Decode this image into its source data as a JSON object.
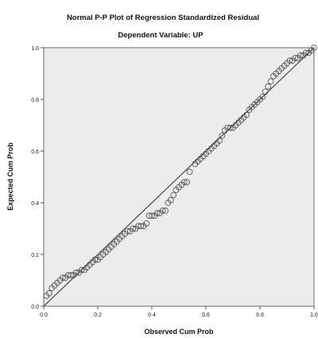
{
  "chart_data": {
    "type": "scatter",
    "title": "Normal P-P Plot of Regression Standardized Residual",
    "subtitle": "Dependent Variable: UP",
    "xlabel": "Observed Cum Prob",
    "ylabel": "Expected Cum Prob",
    "xlim": [
      0,
      1
    ],
    "ylim": [
      0,
      1
    ],
    "x_ticks": [
      "0.0",
      "0.2",
      "0.4",
      "0.6",
      "0.8",
      "1.0"
    ],
    "y_ticks": [
      "0.0",
      "0.2",
      "0.4",
      "0.6",
      "0.8",
      "1.0"
    ],
    "reference_line": [
      [
        0,
        0
      ],
      [
        1,
        1
      ]
    ],
    "grid": false,
    "legend": "none",
    "colors": {
      "plot_background": "#ececec",
      "marker": "#555555",
      "line": "#444444"
    },
    "points": [
      [
        0.01,
        0.04
      ],
      [
        0.02,
        0.05
      ],
      [
        0.03,
        0.07
      ],
      [
        0.04,
        0.08
      ],
      [
        0.05,
        0.09
      ],
      [
        0.06,
        0.1
      ],
      [
        0.07,
        0.11
      ],
      [
        0.08,
        0.11
      ],
      [
        0.09,
        0.12
      ],
      [
        0.1,
        0.12
      ],
      [
        0.11,
        0.12
      ],
      [
        0.12,
        0.13
      ],
      [
        0.13,
        0.13
      ],
      [
        0.14,
        0.14
      ],
      [
        0.15,
        0.14
      ],
      [
        0.16,
        0.15
      ],
      [
        0.17,
        0.16
      ],
      [
        0.18,
        0.17
      ],
      [
        0.19,
        0.18
      ],
      [
        0.2,
        0.18
      ],
      [
        0.21,
        0.19
      ],
      [
        0.22,
        0.2
      ],
      [
        0.23,
        0.21
      ],
      [
        0.24,
        0.22
      ],
      [
        0.25,
        0.23
      ],
      [
        0.26,
        0.24
      ],
      [
        0.27,
        0.25
      ],
      [
        0.28,
        0.26
      ],
      [
        0.29,
        0.27
      ],
      [
        0.3,
        0.28
      ],
      [
        0.31,
        0.29
      ],
      [
        0.32,
        0.29
      ],
      [
        0.33,
        0.3
      ],
      [
        0.34,
        0.3
      ],
      [
        0.35,
        0.31
      ],
      [
        0.36,
        0.31
      ],
      [
        0.37,
        0.31
      ],
      [
        0.38,
        0.32
      ],
      [
        0.39,
        0.35
      ],
      [
        0.4,
        0.35
      ],
      [
        0.41,
        0.35
      ],
      [
        0.42,
        0.36
      ],
      [
        0.43,
        0.36
      ],
      [
        0.44,
        0.37
      ],
      [
        0.45,
        0.37
      ],
      [
        0.46,
        0.4
      ],
      [
        0.47,
        0.41
      ],
      [
        0.48,
        0.43
      ],
      [
        0.49,
        0.45
      ],
      [
        0.5,
        0.46
      ],
      [
        0.51,
        0.47
      ],
      [
        0.52,
        0.48
      ],
      [
        0.53,
        0.48
      ],
      [
        0.54,
        0.52
      ],
      [
        0.56,
        0.55
      ],
      [
        0.57,
        0.56
      ],
      [
        0.58,
        0.57
      ],
      [
        0.59,
        0.58
      ],
      [
        0.6,
        0.59
      ],
      [
        0.61,
        0.6
      ],
      [
        0.62,
        0.61
      ],
      [
        0.63,
        0.62
      ],
      [
        0.64,
        0.63
      ],
      [
        0.65,
        0.64
      ],
      [
        0.66,
        0.66
      ],
      [
        0.67,
        0.68
      ],
      [
        0.68,
        0.69
      ],
      [
        0.69,
        0.69
      ],
      [
        0.7,
        0.69
      ],
      [
        0.71,
        0.7
      ],
      [
        0.72,
        0.71
      ],
      [
        0.73,
        0.72
      ],
      [
        0.74,
        0.73
      ],
      [
        0.75,
        0.74
      ],
      [
        0.76,
        0.76
      ],
      [
        0.77,
        0.77
      ],
      [
        0.78,
        0.78
      ],
      [
        0.79,
        0.79
      ],
      [
        0.8,
        0.8
      ],
      [
        0.81,
        0.81
      ],
      [
        0.82,
        0.83
      ],
      [
        0.83,
        0.85
      ],
      [
        0.84,
        0.87
      ],
      [
        0.85,
        0.89
      ],
      [
        0.86,
        0.9
      ],
      [
        0.87,
        0.91
      ],
      [
        0.88,
        0.92
      ],
      [
        0.89,
        0.93
      ],
      [
        0.9,
        0.94
      ],
      [
        0.91,
        0.95
      ],
      [
        0.92,
        0.95
      ],
      [
        0.93,
        0.96
      ],
      [
        0.94,
        0.96
      ],
      [
        0.95,
        0.97
      ],
      [
        0.96,
        0.97
      ],
      [
        0.97,
        0.98
      ],
      [
        0.98,
        0.98
      ],
      [
        0.99,
        0.99
      ],
      [
        1.0,
        1.0
      ]
    ]
  }
}
